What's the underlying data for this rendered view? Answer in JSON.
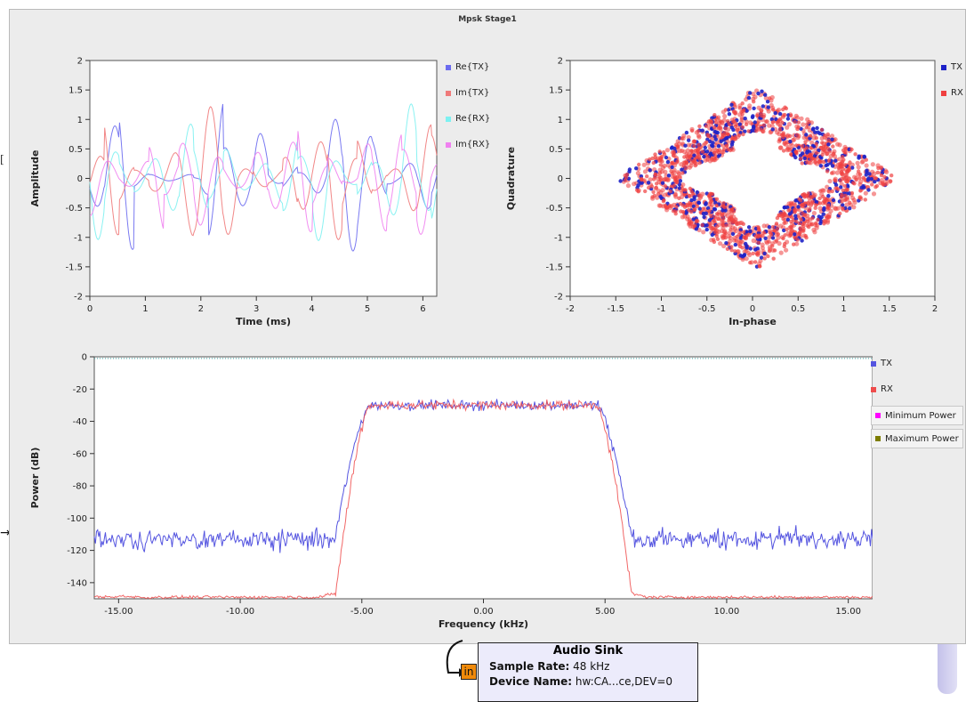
{
  "window": {
    "title": "Mpsk Stage1"
  },
  "background": {
    "left_glyph": "[",
    "arrow_glyph": "→"
  },
  "colors": {
    "tx_real": "#6b6bef",
    "tx_imag": "#f07a7a",
    "rx_real": "#7df1f1",
    "rx_imag": "#f081f0",
    "tx_const": "#1e22c8",
    "rx_const": "#ef4040",
    "tx_psd": "#5555e0",
    "rx_psd": "#ef4c4c",
    "min_power": "#ff00ff",
    "max_power": "#7d7d00"
  },
  "chart_data": [
    {
      "type": "line",
      "xlabel": "Time (ms)",
      "ylabel": "Amplitude",
      "xlim": [
        0,
        6.25
      ],
      "ylim": [
        -2,
        2
      ],
      "x_ticks": [
        "0",
        "1",
        "2",
        "3",
        "4",
        "5",
        "6"
      ],
      "y_ticks": [
        "2",
        "1.5",
        "1",
        "0.5",
        "0",
        "-0.5",
        "-1",
        "-1.5",
        "-2"
      ],
      "series": [
        {
          "name": "Re{TX}"
        },
        {
          "name": "Im{TX}"
        },
        {
          "name": "Re{RX}"
        },
        {
          "name": "Im{RX}"
        }
      ],
      "legend_position": "right"
    },
    {
      "type": "scatter",
      "xlabel": "In-phase",
      "ylabel": "Quadrature",
      "xlim": [
        -2,
        2
      ],
      "ylim": [
        -2,
        2
      ],
      "x_ticks": [
        "-2",
        "-1.5",
        "-1",
        "-0.5",
        "0",
        "0.5",
        "1",
        "1.5",
        "2"
      ],
      "y_ticks": [
        "2",
        "1.5",
        "1",
        "0.5",
        "0",
        "-0.5",
        "-1",
        "-1.5",
        "-2"
      ],
      "series": [
        {
          "name": "TX"
        },
        {
          "name": "RX"
        }
      ],
      "legend_position": "right"
    },
    {
      "type": "line",
      "xlabel": "Frequency (kHz)",
      "ylabel": "Power (dB)",
      "xlim": [
        -16,
        16
      ],
      "ylim": [
        -150,
        0
      ],
      "x_ticks": [
        "-15.00",
        "-10.00",
        "-5.00",
        "0.00",
        "5.00",
        "10.00",
        "15.00"
      ],
      "y_ticks": [
        "0",
        "-20",
        "-40",
        "-60",
        "-80",
        "-100",
        "-120",
        "-140"
      ],
      "series": [
        {
          "name": "TX",
          "noise_floor_db": -112,
          "passband_db": -30,
          "edge_khz": 5.3
        },
        {
          "name": "RX",
          "noise_floor_db": -149,
          "passband_db": -30,
          "edge_khz": 5.3
        }
      ],
      "buttons": [
        "Minimum Power",
        "Maximum Power"
      ],
      "legend_position": "right"
    }
  ],
  "audio_sink": {
    "title": "Audio Sink",
    "sample_rate_label": "Sample Rate:",
    "sample_rate_value": "48 kHz",
    "device_label": "Device Name:",
    "device_value": "hw:CA...ce,DEV=0",
    "port_label": "in"
  }
}
